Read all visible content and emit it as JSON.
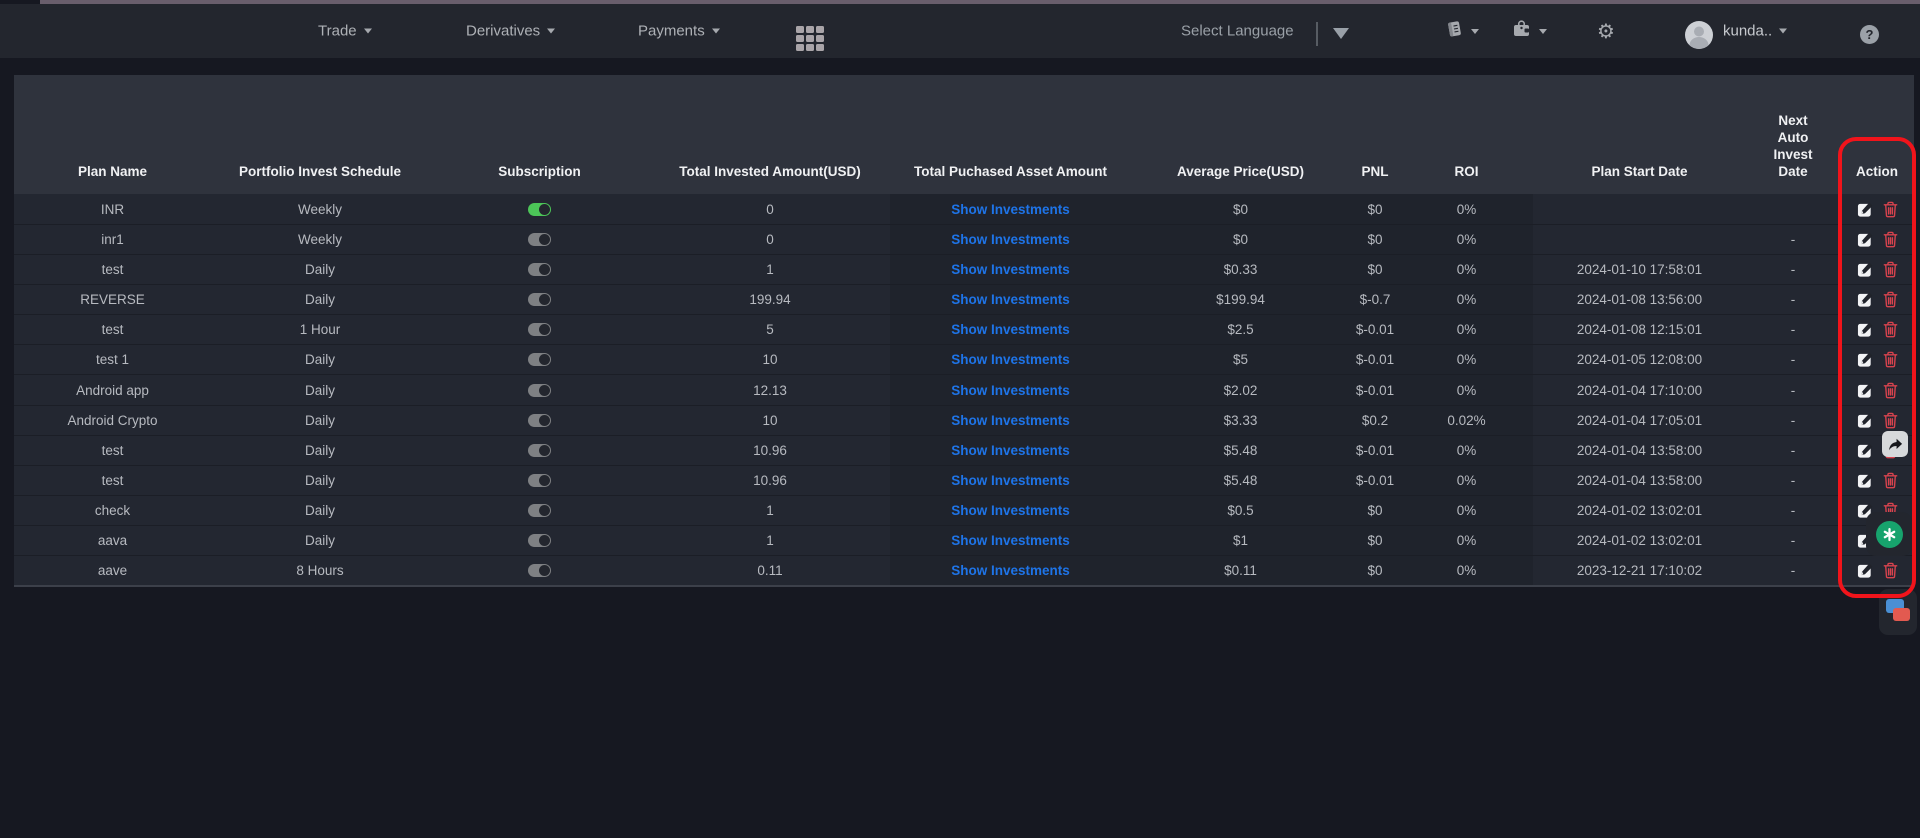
{
  "nav": {
    "menus": [
      {
        "label": "Trade"
      },
      {
        "label": "Derivatives"
      },
      {
        "label": "Payments"
      }
    ],
    "language_label": "Select Language",
    "username": "kunda..",
    "help_label": "?"
  },
  "table": {
    "columns": [
      "Plan Name",
      "Portfolio Invest Schedule",
      "Subscription",
      "Total Invested Amount(USD)",
      "Total Puchased Asset Amount",
      "Average Price(USD)",
      "PNL",
      "ROI",
      "Plan Start Date",
      "Next Auto Invest Date",
      "Action"
    ],
    "show_investments_label": "Show Investments",
    "rows": [
      {
        "plan": "INR",
        "schedule": "Weekly",
        "subscription": true,
        "invested": "0",
        "avg_price": "$0",
        "pnl": "$0",
        "roi": "0%",
        "start_date": "",
        "next_auto": ""
      },
      {
        "plan": "inr1",
        "schedule": "Weekly",
        "subscription": false,
        "invested": "0",
        "avg_price": "$0",
        "pnl": "$0",
        "roi": "0%",
        "start_date": "",
        "next_auto": "-"
      },
      {
        "plan": "test",
        "schedule": "Daily",
        "subscription": false,
        "invested": "1",
        "avg_price": "$0.33",
        "pnl": "$0",
        "roi": "0%",
        "start_date": "2024-01-10 17:58:01",
        "next_auto": "-"
      },
      {
        "plan": "REVERSE",
        "schedule": "Daily",
        "subscription": false,
        "invested": "199.94",
        "avg_price": "$199.94",
        "pnl": "$-0.7",
        "roi": "0%",
        "start_date": "2024-01-08 13:56:00",
        "next_auto": "-"
      },
      {
        "plan": "test",
        "schedule": "1 Hour",
        "subscription": false,
        "invested": "5",
        "avg_price": "$2.5",
        "pnl": "$-0.01",
        "roi": "0%",
        "start_date": "2024-01-08 12:15:01",
        "next_auto": "-"
      },
      {
        "plan": "test 1",
        "schedule": "Daily",
        "subscription": false,
        "invested": "10",
        "avg_price": "$5",
        "pnl": "$-0.01",
        "roi": "0%",
        "start_date": "2024-01-05 12:08:00",
        "next_auto": "-"
      },
      {
        "plan": "Android app",
        "schedule": "Daily",
        "subscription": false,
        "invested": "12.13",
        "avg_price": "$2.02",
        "pnl": "$-0.01",
        "roi": "0%",
        "start_date": "2024-01-04 17:10:00",
        "next_auto": "-"
      },
      {
        "plan": "Android Crypto",
        "schedule": "Daily",
        "subscription": false,
        "invested": "10",
        "avg_price": "$3.33",
        "pnl": "$0.2",
        "roi": "0.02%",
        "start_date": "2024-01-04 17:05:01",
        "next_auto": "-"
      },
      {
        "plan": "test",
        "schedule": "Daily",
        "subscription": false,
        "invested": "10.96",
        "avg_price": "$5.48",
        "pnl": "$-0.01",
        "roi": "0%",
        "start_date": "2024-01-04 13:58:00",
        "next_auto": "-"
      },
      {
        "plan": "test",
        "schedule": "Daily",
        "subscription": false,
        "invested": "10.96",
        "avg_price": "$5.48",
        "pnl": "$-0.01",
        "roi": "0%",
        "start_date": "2024-01-04 13:58:00",
        "next_auto": "-"
      },
      {
        "plan": "check",
        "schedule": "Daily",
        "subscription": false,
        "invested": "1",
        "avg_price": "$0.5",
        "pnl": "$0",
        "roi": "0%",
        "start_date": "2024-01-02 13:02:01",
        "next_auto": "-"
      },
      {
        "plan": "aava",
        "schedule": "Daily",
        "subscription": false,
        "invested": "1",
        "avg_price": "$1",
        "pnl": "$0",
        "roi": "0%",
        "start_date": "2024-01-02 13:02:01",
        "next_auto": "-"
      },
      {
        "plan": "aave",
        "schedule": "8 Hours",
        "subscription": false,
        "invested": "0.11",
        "avg_price": "$0.11",
        "pnl": "$0",
        "roi": "0%",
        "start_date": "2023-12-21 17:10:02",
        "next_auto": "-"
      }
    ]
  },
  "colors": {
    "link_blue": "#1e74e8",
    "toggle_on_green": "#4cc558",
    "trash_red": "#d8434e",
    "highlight_red": "#f1141b",
    "gpt_green": "#17a36d"
  }
}
